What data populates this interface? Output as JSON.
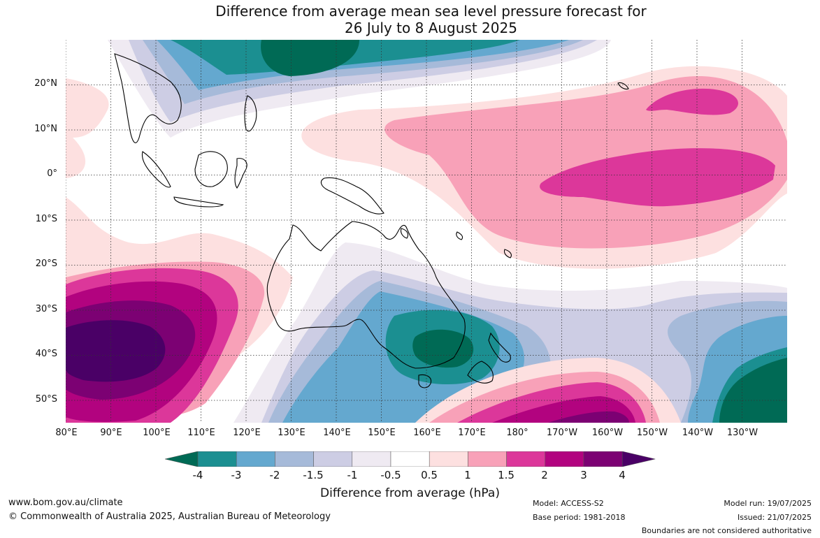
{
  "title_line1": "Difference from average mean sea level pressure forecast for",
  "title_line2": "26 July to 8 August 2025",
  "map": {
    "projection": "equirectangular",
    "lon_range": [
      80,
      235
    ],
    "lat_range": [
      -55,
      30
    ],
    "lat_labels": [
      "20°N",
      "10°N",
      "0°",
      "10°S",
      "20°S",
      "30°S",
      "40°S",
      "50°S"
    ],
    "lat_values": [
      20,
      10,
      0,
      -10,
      -20,
      -30,
      -40,
      -50
    ],
    "lon_labels": [
      "80°E",
      "90°E",
      "100°E",
      "110°E",
      "120°E",
      "130°E",
      "140°E",
      "150°E",
      "160°E",
      "170°E",
      "180°",
      "170°W",
      "160°W",
      "150°W",
      "140°W",
      "130°W"
    ],
    "lon_values": [
      80,
      90,
      100,
      110,
      120,
      130,
      140,
      150,
      160,
      170,
      180,
      190,
      200,
      210,
      220,
      230
    ],
    "gridlines": "dotted",
    "field": "MSLP anomaly (hPa)"
  },
  "colorbar": {
    "label": "Difference from average (hPa)",
    "ticks": [
      "-4",
      "-3",
      "-2",
      "-1.5",
      "-1",
      "-0.5",
      "0.5",
      "1",
      "1.5",
      "2",
      "3",
      "4"
    ],
    "colors": [
      "#006a55",
      "#1b8f91",
      "#64a8cf",
      "#a6bad9",
      "#cdcde4",
      "#efeaf2",
      "#ffffff",
      "#fde0e0",
      "#f8a1b8",
      "#dc379a",
      "#b2037f",
      "#7c0173",
      "#4a0066"
    ],
    "extend": "both"
  },
  "footer": {
    "website": "www.bom.gov.au/climate",
    "copyright": "© Commonwealth of Australia 2025, Australian Bureau of Meteorology",
    "model": "Model: ACCESS-S2",
    "base_period": "Base period: 1981-2018",
    "model_run": "Model run: 19/07/2025",
    "issued": "Issued: 21/07/2025",
    "disclaimer": "Boundaries are not considered authoritative"
  }
}
